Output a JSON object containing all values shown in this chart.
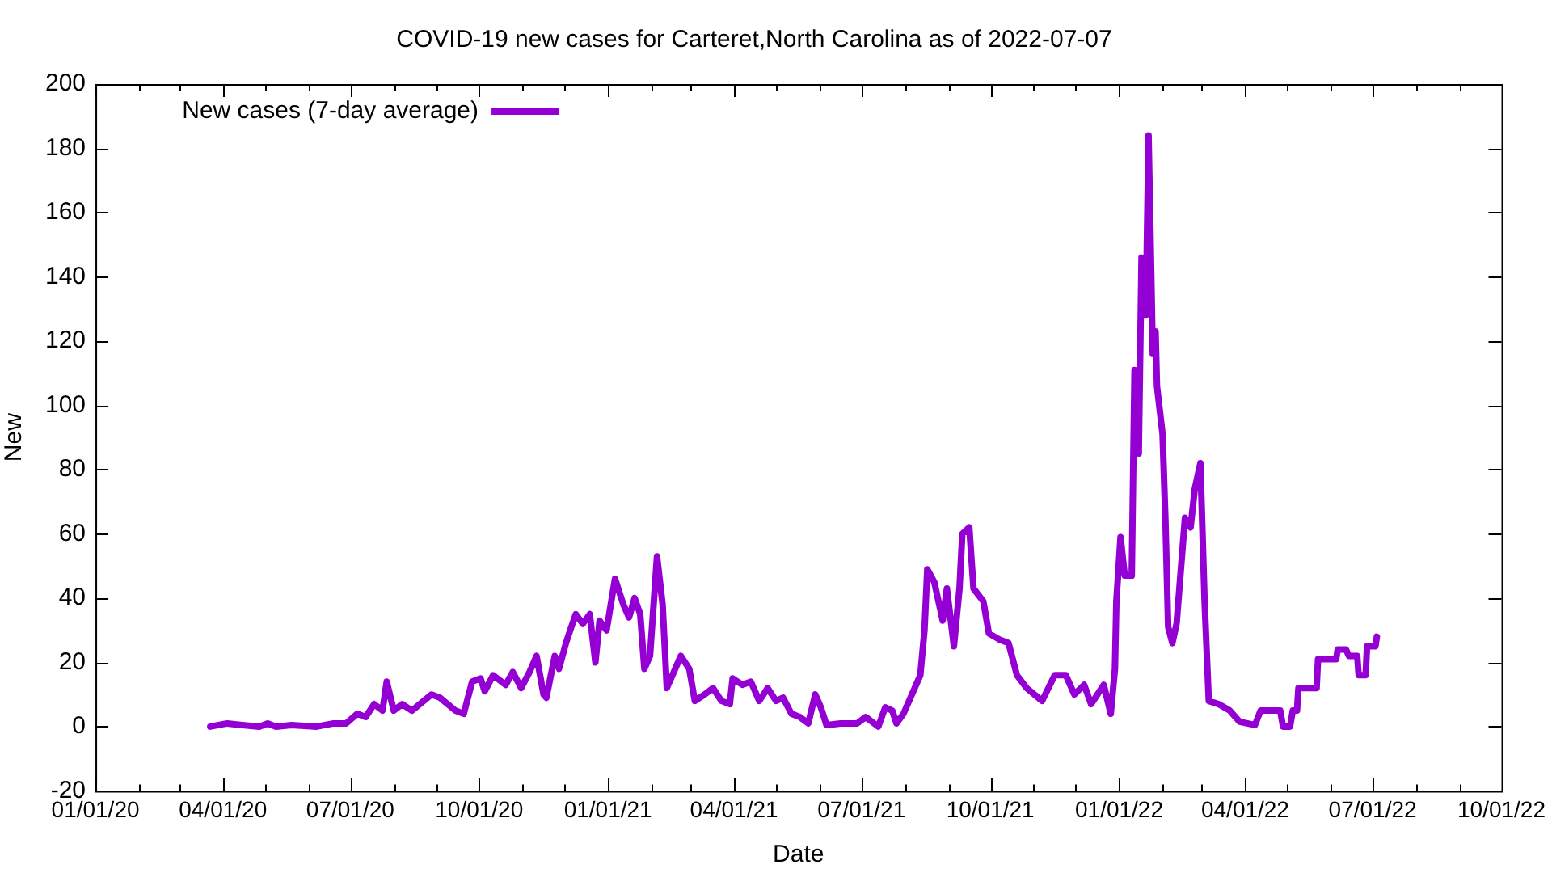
{
  "chart_data": {
    "type": "line",
    "title": "COVID-19 new cases for Carteret,North Carolina as of 2022-07-07",
    "xlabel": "Date",
    "ylabel": "New",
    "xlim": [
      "2020-01-01",
      "2022-10-01"
    ],
    "xticks": [
      {
        "value": "2020-01-01",
        "label": "01/01/20"
      },
      {
        "value": "2020-02-01",
        "label": null
      },
      {
        "value": "2020-03-01",
        "label": null
      },
      {
        "value": "2020-04-01",
        "label": "04/01/20"
      },
      {
        "value": "2020-05-01",
        "label": null
      },
      {
        "value": "2020-06-01",
        "label": null
      },
      {
        "value": "2020-07-01",
        "label": "07/01/20"
      },
      {
        "value": "2020-08-01",
        "label": null
      },
      {
        "value": "2020-09-01",
        "label": null
      },
      {
        "value": "2020-10-01",
        "label": "10/01/20"
      },
      {
        "value": "2020-11-01",
        "label": null
      },
      {
        "value": "2020-12-01",
        "label": null
      },
      {
        "value": "2021-01-01",
        "label": "01/01/21"
      },
      {
        "value": "2021-02-01",
        "label": null
      },
      {
        "value": "2021-03-01",
        "label": null
      },
      {
        "value": "2021-04-01",
        "label": "04/01/21"
      },
      {
        "value": "2021-05-01",
        "label": null
      },
      {
        "value": "2021-06-01",
        "label": null
      },
      {
        "value": "2021-07-01",
        "label": "07/01/21"
      },
      {
        "value": "2021-08-01",
        "label": null
      },
      {
        "value": "2021-09-01",
        "label": null
      },
      {
        "value": "2021-10-01",
        "label": "10/01/21"
      },
      {
        "value": "2021-11-01",
        "label": null
      },
      {
        "value": "2021-12-01",
        "label": null
      },
      {
        "value": "2022-01-01",
        "label": "01/01/22"
      },
      {
        "value": "2022-02-01",
        "label": null
      },
      {
        "value": "2022-03-01",
        "label": null
      },
      {
        "value": "2022-04-01",
        "label": "04/01/22"
      },
      {
        "value": "2022-05-01",
        "label": null
      },
      {
        "value": "2022-06-01",
        "label": null
      },
      {
        "value": "2022-07-01",
        "label": "07/01/22"
      },
      {
        "value": "2022-08-01",
        "label": null
      },
      {
        "value": "2022-09-01",
        "label": null
      },
      {
        "value": "2022-10-01",
        "label": "10/01/22"
      }
    ],
    "ylim": [
      -20,
      200
    ],
    "yticks": [
      -20,
      0,
      20,
      40,
      60,
      80,
      100,
      120,
      140,
      160,
      180,
      200
    ],
    "grid": false,
    "legend": "top left",
    "line_style": "solid",
    "x": [
      "2020-03-23",
      "2020-04-04",
      "2020-04-15",
      "2020-04-27",
      "2020-05-03",
      "2020-05-09",
      "2020-05-20",
      "2020-06-07",
      "2020-06-19",
      "2020-06-28",
      "2020-07-06",
      "2020-07-12",
      "2020-07-18",
      "2020-07-24",
      "2020-07-27",
      "2020-08-01",
      "2020-08-07",
      "2020-08-14",
      "2020-08-28",
      "2020-09-03",
      "2020-09-14",
      "2020-09-20",
      "2020-09-26",
      "2020-10-02",
      "2020-10-05",
      "2020-10-11",
      "2020-10-20",
      "2020-10-25",
      "2020-10-31",
      "2020-11-06",
      "2020-11-11",
      "2020-11-16",
      "2020-11-18",
      "2020-11-24",
      "2020-11-27",
      "2020-12-02",
      "2020-12-05",
      "2020-12-09",
      "2020-12-14",
      "2020-12-19",
      "2020-12-23",
      "2020-12-26",
      "2020-12-31",
      "2021-01-06",
      "2021-01-12",
      "2021-01-16",
      "2021-01-20",
      "2021-01-24",
      "2021-01-27",
      "2021-01-31",
      "2021-02-05",
      "2021-02-09",
      "2021-02-12",
      "2021-02-17",
      "2021-02-22",
      "2021-02-28",
      "2021-03-04",
      "2021-03-11",
      "2021-03-17",
      "2021-03-23",
      "2021-03-29",
      "2021-03-31",
      "2021-04-07",
      "2021-04-13",
      "2021-04-19",
      "2021-04-25",
      "2021-05-01",
      "2021-05-06",
      "2021-05-12",
      "2021-05-18",
      "2021-05-24",
      "2021-05-29",
      "2021-06-02",
      "2021-06-06",
      "2021-06-16",
      "2021-06-28",
      "2021-07-04",
      "2021-07-10",
      "2021-07-13",
      "2021-07-18",
      "2021-07-23",
      "2021-07-26",
      "2021-07-31",
      "2021-08-06",
      "2021-08-12",
      "2021-08-15",
      "2021-08-17",
      "2021-08-22",
      "2021-08-28",
      "2021-08-31",
      "2021-09-05",
      "2021-09-09",
      "2021-09-11",
      "2021-09-16",
      "2021-09-19",
      "2021-09-26",
      "2021-09-30",
      "2021-10-08",
      "2021-10-14",
      "2021-10-20",
      "2021-10-27",
      "2021-11-07",
      "2021-11-16",
      "2021-11-24",
      "2021-11-30",
      "2021-12-07",
      "2021-12-12",
      "2021-12-21",
      "2021-12-26",
      "2021-12-29",
      "2021-12-30",
      "2022-01-02",
      "2022-01-05",
      "2022-01-10",
      "2022-01-12",
      "2022-01-15",
      "2022-01-17",
      "2022-01-20",
      "2022-01-22",
      "2022-01-25",
      "2022-01-27",
      "2022-01-28",
      "2022-02-01",
      "2022-02-03",
      "2022-02-05",
      "2022-02-08",
      "2022-02-11",
      "2022-02-17",
      "2022-02-21",
      "2022-02-24",
      "2022-02-28",
      "2022-03-03",
      "2022-03-06",
      "2022-03-13",
      "2022-03-21",
      "2022-03-28",
      "2022-04-08",
      "2022-04-12",
      "2022-04-26",
      "2022-04-28",
      "2022-05-03",
      "2022-05-05",
      "2022-05-08",
      "2022-05-09",
      "2022-05-22",
      "2022-05-23",
      "2022-06-05",
      "2022-06-06",
      "2022-06-12",
      "2022-06-14",
      "2022-06-20",
      "2022-06-21",
      "2022-06-26",
      "2022-06-27",
      "2022-07-03",
      "2022-07-04"
    ],
    "series": [
      {
        "name": "New cases (7-day average)",
        "color": "#9400d3",
        "values": [
          0,
          1,
          0.5,
          0,
          1,
          0,
          0.5,
          0,
          1,
          1,
          4,
          3,
          7,
          5,
          14,
          5,
          7,
          5,
          10,
          9,
          5,
          4,
          14,
          15,
          11,
          16,
          13,
          17,
          12,
          17,
          22,
          10,
          9,
          22,
          18,
          26,
          30,
          35,
          32,
          35,
          20,
          33,
          30,
          46,
          38,
          34,
          40,
          35,
          18,
          22,
          53,
          38,
          12,
          17,
          22,
          18,
          8,
          10,
          12,
          8,
          7,
          15,
          13,
          14,
          8,
          12,
          8,
          9,
          4,
          3,
          1,
          10,
          6,
          0.5,
          1,
          1,
          3,
          1,
          0,
          6,
          5,
          1,
          4,
          10,
          16,
          30,
          49,
          45,
          33,
          43,
          25,
          43,
          60,
          62,
          43,
          39,
          29,
          27,
          26,
          16,
          12,
          8,
          16,
          16,
          10,
          13,
          7,
          13,
          4,
          18,
          39,
          59,
          47,
          47,
          111,
          85,
          146,
          128,
          184,
          116,
          123,
          106,
          91,
          65,
          31,
          26,
          32,
          65,
          62,
          74,
          82,
          39,
          8,
          7,
          5,
          1.5,
          0.5,
          5,
          5,
          0,
          0,
          5,
          5,
          12,
          12,
          21,
          21,
          24,
          24,
          22,
          22,
          16,
          16,
          25,
          25,
          28
        ]
      }
    ]
  }
}
